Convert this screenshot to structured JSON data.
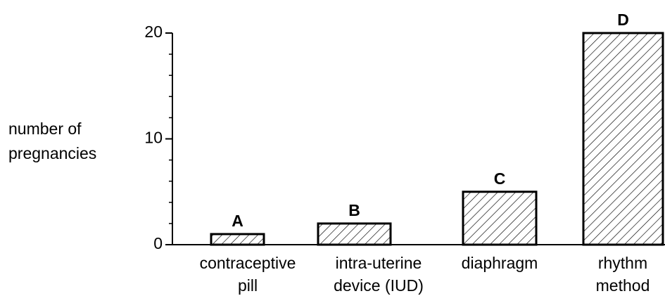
{
  "chart_data": {
    "type": "bar",
    "ylabel": [
      "number of",
      "pregnancies"
    ],
    "categories": [
      [
        "contraceptive",
        "pill"
      ],
      [
        "intra-uterine",
        "device (IUD)"
      ],
      [
        "diaphragm"
      ],
      [
        "rhythm",
        "method"
      ]
    ],
    "values": [
      1,
      2,
      5,
      20
    ],
    "bar_labels": [
      "A",
      "B",
      "C",
      "D"
    ],
    "ylim": [
      0,
      20
    ],
    "yticks": [
      0,
      10,
      20
    ],
    "yminor_ticks": [
      2,
      4,
      6,
      8,
      12,
      14,
      16,
      18
    ],
    "color": "#000000",
    "hatch": true
  }
}
